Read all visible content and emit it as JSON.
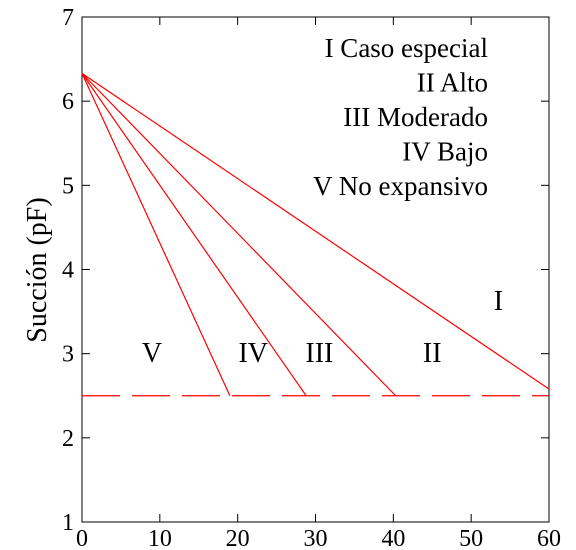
{
  "chart_data": {
    "type": "line",
    "xlabel": "",
    "ylabel": "Succión (pF)",
    "xlim": [
      0,
      60
    ],
    "ylim": [
      1,
      7
    ],
    "x_ticks": [
      0,
      10,
      20,
      30,
      40,
      50,
      60
    ],
    "y_ticks": [
      1,
      2,
      3,
      4,
      5,
      6,
      7
    ],
    "grid": false,
    "colors": {
      "series": "#ff0000",
      "axes": "#000000"
    },
    "origin_point": {
      "x": 0,
      "y": 6.33
    },
    "series": [
      {
        "name": "I",
        "x": [
          0,
          60
        ],
        "y": [
          6.33,
          2.58
        ]
      },
      {
        "name": "II",
        "x": [
          0,
          40.3
        ],
        "y": [
          6.33,
          2.5
        ]
      },
      {
        "name": "III",
        "x": [
          0,
          28.8
        ],
        "y": [
          6.33,
          2.5
        ]
      },
      {
        "name": "IV",
        "x": [
          0,
          19
        ],
        "y": [
          6.33,
          2.5
        ]
      }
    ],
    "threshold_line": {
      "y": 2.5,
      "x": [
        0,
        60
      ],
      "style": "dashed"
    },
    "legend": [
      "I Caso especial",
      "II Alto",
      "III Moderado",
      "IV Bajo",
      "V No expansivo"
    ],
    "region_labels": [
      {
        "text": "I",
        "x": 53.5,
        "y": 3.52
      },
      {
        "text": "II",
        "x": 45,
        "y": 2.9
      },
      {
        "text": "III",
        "x": 30.5,
        "y": 2.9
      },
      {
        "text": "IV",
        "x": 22,
        "y": 2.9
      },
      {
        "text": "V",
        "x": 9,
        "y": 2.9
      }
    ]
  }
}
